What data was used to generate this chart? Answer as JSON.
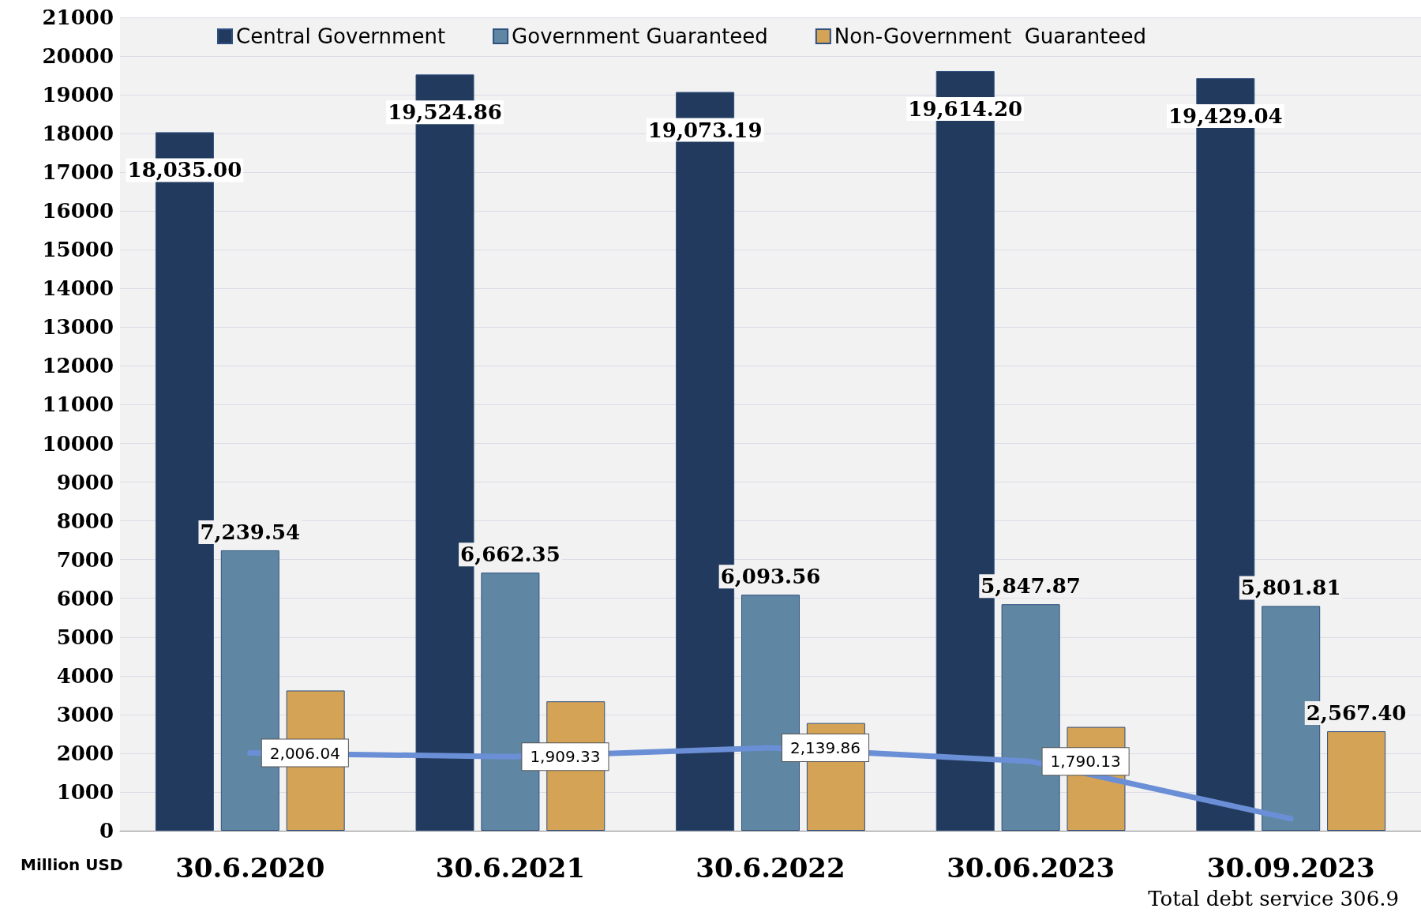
{
  "chart_data": {
    "type": "bar",
    "ylabel": "Million USD",
    "categories": [
      "30.6.2020",
      "30.6.2021",
      "30.6.2022",
      "30.06.2023",
      "30.09.2023"
    ],
    "series": [
      {
        "name": "Central Government",
        "color": "#223a5e",
        "values": [
          18035.0,
          19524.86,
          19073.19,
          19614.2,
          19429.04
        ],
        "value_labels": [
          "18,035.00",
          "19,524.86",
          "19,073.19",
          "19,614.20",
          "19,429.04"
        ]
      },
      {
        "name": "Government Guaranteed",
        "color": "#5f87a3",
        "values": [
          7239.54,
          6662.35,
          6093.56,
          5847.87,
          5801.81
        ],
        "value_labels": [
          "7,239.54",
          "6,662.35",
          "6,093.56",
          "5,847.87",
          "5,801.81"
        ]
      },
      {
        "name": "Non-Government  Guaranteed",
        "color": "#d4a355",
        "values": [
          3620,
          3340,
          2780,
          2680,
          2567.4
        ],
        "value_labels": [
          null,
          null,
          null,
          null,
          "2,567.40"
        ]
      },
      {
        "type": "line",
        "color": "#6a8fd6",
        "values": [
          2006.04,
          1909.33,
          2139.86,
          1790.13,
          306.9
        ],
        "value_labels": [
          "2,006.04",
          "1,909.33",
          "2,139.86",
          "1,790.13",
          null
        ]
      }
    ],
    "annotations": [
      "Total debt service 306.9"
    ],
    "ylim": [
      0,
      21000
    ],
    "yticks": [
      0,
      1000,
      2000,
      3000,
      4000,
      5000,
      6000,
      7000,
      8000,
      9000,
      10000,
      11000,
      12000,
      13000,
      14000,
      15000,
      16000,
      17000,
      18000,
      19000,
      20000,
      21000
    ],
    "grid": "y",
    "legend": "top",
    "marker": "none"
  }
}
